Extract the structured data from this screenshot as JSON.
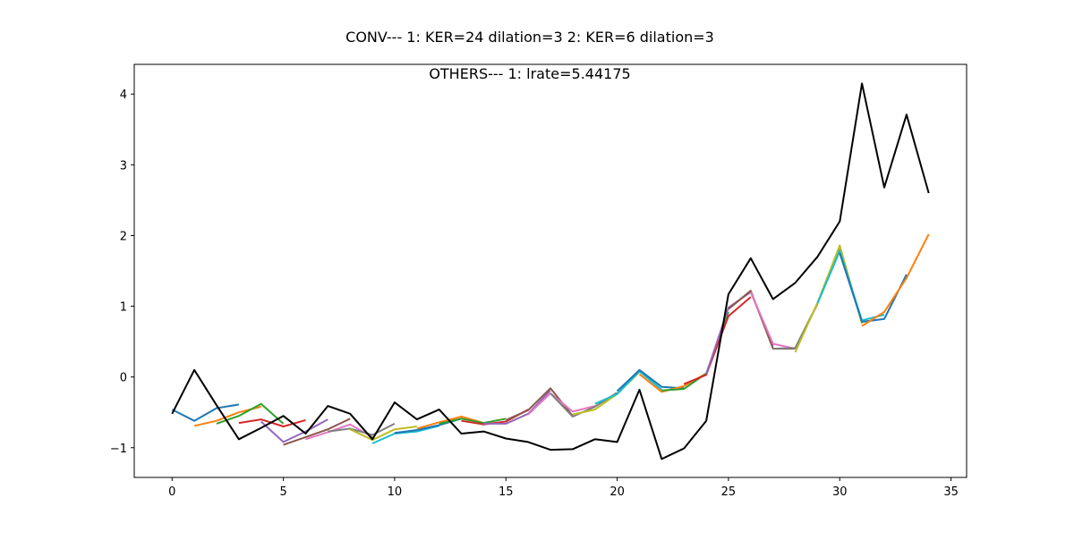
{
  "figure": {
    "title": "CONV--- 1: KER=24   dilation=3   2: KER=6   dilation=3",
    "subtitle": "OTHERS--- 1: lrate=5.44175"
  },
  "chart_data": {
    "type": "line",
    "title": "CONV--- 1: KER=24   dilation=3   2: KER=6   dilation=3",
    "subtitle": "OTHERS--- 1: lrate=5.44175",
    "xlabel": "",
    "ylabel": "",
    "xlim": [
      -1.7,
      35.7
    ],
    "ylim": [
      -1.42,
      4.42
    ],
    "xticks": [
      0,
      5,
      10,
      15,
      20,
      25,
      30,
      35
    ],
    "yticks": [
      -1,
      0,
      1,
      2,
      3,
      4
    ],
    "grid": false,
    "legend": "none",
    "actual": {
      "color": "#000000",
      "x": [
        0,
        1,
        2,
        3,
        4,
        5,
        6,
        7,
        8,
        9,
        10,
        11,
        12,
        13,
        14,
        15,
        16,
        17,
        18,
        19,
        20,
        21,
        22,
        23,
        24,
        25,
        26,
        27,
        28,
        29,
        30,
        31,
        32,
        33,
        34
      ],
      "y": [
        -0.52,
        0.1,
        -0.4,
        -0.88,
        -0.72,
        -0.55,
        -0.8,
        -0.41,
        -0.52,
        -0.88,
        -0.36,
        -0.6,
        -0.46,
        -0.8,
        -0.77,
        -0.87,
        -0.92,
        -1.03,
        -1.02,
        -0.88,
        -0.92,
        -0.18,
        -1.16,
        -1.01,
        -0.62,
        1.17,
        1.68,
        1.1,
        1.33,
        1.7,
        2.2,
        4.15,
        2.68,
        3.71,
        2.6
      ]
    },
    "series": [
      {
        "color": "#1f77b4",
        "x": [
          0,
          1,
          2,
          3
        ],
        "y": [
          -0.46,
          -0.62,
          -0.44,
          -0.39
        ]
      },
      {
        "color": "#ff7f0e",
        "x": [
          1,
          2,
          3,
          4
        ],
        "y": [
          -0.69,
          -0.62,
          -0.5,
          -0.42
        ]
      },
      {
        "color": "#2ca02c",
        "x": [
          2,
          3,
          4,
          5
        ],
        "y": [
          -0.66,
          -0.55,
          -0.38,
          -0.66
        ]
      },
      {
        "color": "#d62728",
        "x": [
          3,
          4,
          5,
          6
        ],
        "y": [
          -0.65,
          -0.6,
          -0.7,
          -0.61
        ]
      },
      {
        "color": "#9467bd",
        "x": [
          4,
          5,
          6,
          7
        ],
        "y": [
          -0.63,
          -0.92,
          -0.77,
          -0.6
        ]
      },
      {
        "color": "#8c564b",
        "x": [
          5,
          6,
          7,
          8
        ],
        "y": [
          -0.96,
          -0.85,
          -0.74,
          -0.59
        ]
      },
      {
        "color": "#e377c2",
        "x": [
          6,
          7,
          8,
          9
        ],
        "y": [
          -0.88,
          -0.78,
          -0.67,
          -0.85
        ]
      },
      {
        "color": "#7f7f7f",
        "x": [
          7,
          8,
          9,
          10
        ],
        "y": [
          -0.77,
          -0.73,
          -0.82,
          -0.66
        ]
      },
      {
        "color": "#bcbd22",
        "x": [
          8,
          9,
          10,
          11
        ],
        "y": [
          -0.74,
          -0.89,
          -0.74,
          -0.7
        ]
      },
      {
        "color": "#17becf",
        "x": [
          9,
          10,
          11,
          12
        ],
        "y": [
          -0.94,
          -0.8,
          -0.77,
          -0.69
        ]
      },
      {
        "color": "#1f77b4",
        "x": [
          10,
          11,
          12,
          13
        ],
        "y": [
          -0.79,
          -0.75,
          -0.68,
          -0.59
        ]
      },
      {
        "color": "#ff7f0e",
        "x": [
          11,
          12,
          13,
          14
        ],
        "y": [
          -0.73,
          -0.64,
          -0.56,
          -0.65
        ]
      },
      {
        "color": "#2ca02c",
        "x": [
          12,
          13,
          14,
          15
        ],
        "y": [
          -0.66,
          -0.59,
          -0.65,
          -0.59
        ]
      },
      {
        "color": "#d62728",
        "x": [
          13,
          14,
          15,
          16
        ],
        "y": [
          -0.62,
          -0.67,
          -0.63,
          -0.46
        ]
      },
      {
        "color": "#9467bd",
        "x": [
          14,
          15,
          16,
          17
        ],
        "y": [
          -0.66,
          -0.66,
          -0.52,
          -0.19
        ]
      },
      {
        "color": "#8c564b",
        "x": [
          15,
          16,
          17,
          18
        ],
        "y": [
          -0.61,
          -0.47,
          -0.16,
          -0.55
        ]
      },
      {
        "color": "#e377c2",
        "x": [
          16,
          17,
          18,
          19
        ],
        "y": [
          -0.53,
          -0.23,
          -0.49,
          -0.41
        ]
      },
      {
        "color": "#7f7f7f",
        "x": [
          17,
          18,
          19,
          20
        ],
        "y": [
          -0.23,
          -0.56,
          -0.42,
          -0.22
        ]
      },
      {
        "color": "#bcbd22",
        "x": [
          18,
          19,
          20,
          21
        ],
        "y": [
          -0.53,
          -0.46,
          -0.24,
          0.07
        ]
      },
      {
        "color": "#17becf",
        "x": [
          19,
          20,
          21,
          22
        ],
        "y": [
          -0.38,
          -0.24,
          0.08,
          -0.18
        ]
      },
      {
        "color": "#1f77b4",
        "x": [
          20,
          21,
          22,
          23
        ],
        "y": [
          -0.2,
          0.1,
          -0.14,
          -0.16
        ]
      },
      {
        "color": "#ff7f0e",
        "x": [
          21,
          22,
          23,
          24
        ],
        "y": [
          0.04,
          -0.21,
          -0.13,
          0.05
        ]
      },
      {
        "color": "#2ca02c",
        "x": [
          22,
          23,
          24,
          25
        ],
        "y": [
          -0.19,
          -0.17,
          0.05,
          0.92
        ]
      },
      {
        "color": "#d62728",
        "x": [
          23,
          24,
          25,
          26
        ],
        "y": [
          -0.1,
          0.03,
          0.86,
          1.13
        ]
      },
      {
        "color": "#9467bd",
        "x": [
          24,
          25,
          26,
          27
        ],
        "y": [
          0.04,
          0.98,
          1.2,
          0.44
        ]
      },
      {
        "color": "#8c564b",
        "x": [
          25,
          26,
          27,
          28
        ],
        "y": [
          0.96,
          1.22,
          0.4,
          0.4
        ]
      },
      {
        "color": "#e377c2",
        "x": [
          26,
          27,
          28,
          29
        ],
        "y": [
          1.2,
          0.47,
          0.4,
          1.03
        ]
      },
      {
        "color": "#7f7f7f",
        "x": [
          27,
          28,
          29,
          30
        ],
        "y": [
          0.4,
          0.41,
          1.04,
          1.81
        ]
      },
      {
        "color": "#bcbd22",
        "x": [
          28,
          29,
          30,
          31
        ],
        "y": [
          0.35,
          1.05,
          1.86,
          0.75
        ]
      },
      {
        "color": "#17becf",
        "x": [
          29,
          30,
          31,
          32
        ],
        "y": [
          1.04,
          1.78,
          0.8,
          0.88
        ]
      },
      {
        "color": "#1f77b4",
        "x": [
          30,
          31,
          32,
          33
        ],
        "y": [
          1.75,
          0.78,
          0.82,
          1.45
        ]
      },
      {
        "color": "#ff7f0e",
        "x": [
          31,
          32,
          33,
          34
        ],
        "y": [
          0.72,
          0.92,
          1.4,
          2.02
        ]
      }
    ]
  }
}
